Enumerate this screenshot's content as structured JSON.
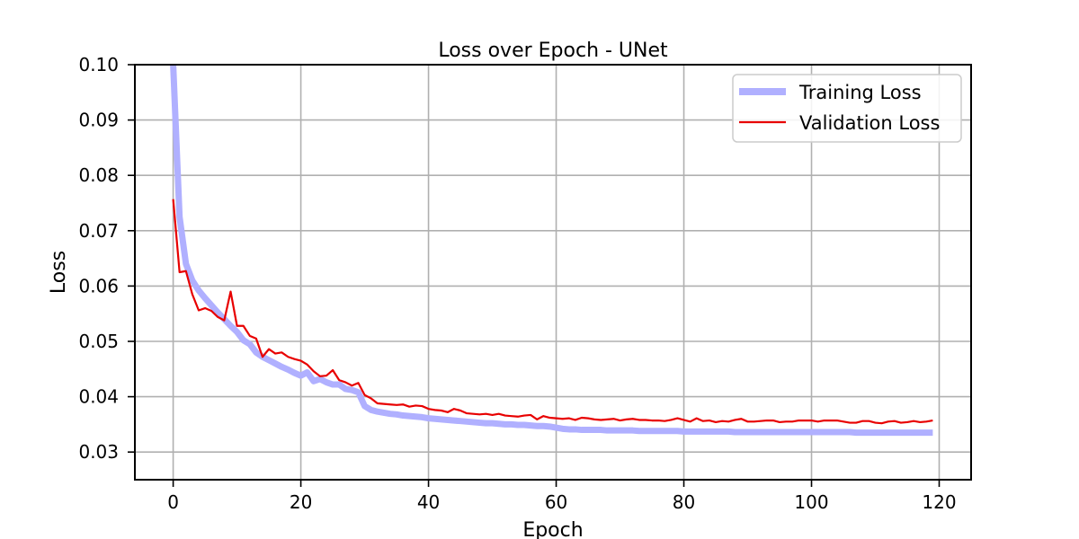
{
  "chart_data": {
    "type": "line",
    "title": "Loss over Epoch - UNet",
    "xlabel": "Epoch",
    "ylabel": "Loss",
    "xlim": [
      -6,
      125
    ],
    "ylim": [
      0.025,
      0.1
    ],
    "xticks": [
      "0",
      "20",
      "40",
      "60",
      "80",
      "100",
      "120"
    ],
    "yticks": [
      "0.03",
      "0.04",
      "0.05",
      "0.06",
      "0.07",
      "0.08",
      "0.09",
      "0.10"
    ],
    "grid": true,
    "legend_position": "top-right",
    "series": [
      {
        "name": "Training Loss",
        "color": "#b0b0ff",
        "x": [
          0,
          1,
          2,
          3,
          4,
          5,
          6,
          7,
          8,
          9,
          10,
          11,
          12,
          13,
          14,
          15,
          16,
          17,
          18,
          19,
          20,
          21,
          22,
          23,
          24,
          25,
          26,
          27,
          28,
          29,
          30,
          31,
          32,
          33,
          34,
          35,
          36,
          37,
          38,
          39,
          40,
          41,
          42,
          43,
          44,
          45,
          46,
          47,
          48,
          49,
          50,
          51,
          52,
          53,
          54,
          55,
          56,
          57,
          58,
          59,
          60,
          61,
          62,
          63,
          64,
          65,
          66,
          67,
          68,
          69,
          70,
          71,
          72,
          73,
          74,
          75,
          76,
          77,
          78,
          79,
          80,
          81,
          82,
          83,
          84,
          85,
          86,
          87,
          88,
          89,
          90,
          91,
          92,
          93,
          94,
          95,
          96,
          97,
          98,
          99,
          100,
          101,
          102,
          103,
          104,
          105,
          106,
          107,
          108,
          109,
          110,
          111,
          112,
          113,
          114,
          115,
          116,
          117,
          118,
          119
        ],
        "y": [
          0.1,
          0.0725,
          0.064,
          0.061,
          0.0592,
          0.0578,
          0.0565,
          0.0552,
          0.054,
          0.0528,
          0.0517,
          0.0502,
          0.0495,
          0.048,
          0.0472,
          0.0466,
          0.046,
          0.0454,
          0.0449,
          0.0443,
          0.0438,
          0.0444,
          0.0428,
          0.0432,
          0.0426,
          0.0422,
          0.0422,
          0.0414,
          0.0412,
          0.0408,
          0.0383,
          0.0376,
          0.0373,
          0.0371,
          0.0369,
          0.0368,
          0.0366,
          0.0365,
          0.0364,
          0.0363,
          0.0361,
          0.036,
          0.0359,
          0.0358,
          0.0357,
          0.0356,
          0.0355,
          0.0354,
          0.0353,
          0.0352,
          0.0352,
          0.0351,
          0.035,
          0.035,
          0.0349,
          0.0349,
          0.0348,
          0.0347,
          0.0347,
          0.0346,
          0.0344,
          0.0342,
          0.0341,
          0.0341,
          0.034,
          0.034,
          0.034,
          0.034,
          0.0339,
          0.0339,
          0.0339,
          0.0339,
          0.0339,
          0.0338,
          0.0338,
          0.0338,
          0.0338,
          0.0338,
          0.0338,
          0.0338,
          0.0337,
          0.0337,
          0.0337,
          0.0337,
          0.0337,
          0.0337,
          0.0337,
          0.0337,
          0.0336,
          0.0336,
          0.0336,
          0.0336,
          0.0336,
          0.0336,
          0.0336,
          0.0336,
          0.0336,
          0.0336,
          0.0336,
          0.0336,
          0.0336,
          0.0336,
          0.0336,
          0.0336,
          0.0336,
          0.0336,
          0.0336,
          0.0335,
          0.0335,
          0.0335,
          0.0335,
          0.0335,
          0.0335,
          0.0335,
          0.0335,
          0.0335,
          0.0335,
          0.0335,
          0.0335,
          0.0335
        ]
      },
      {
        "name": "Validation Loss",
        "color": "#e80000",
        "x": [
          0,
          1,
          2,
          3,
          4,
          5,
          6,
          7,
          8,
          9,
          10,
          11,
          12,
          13,
          14,
          15,
          16,
          17,
          18,
          19,
          20,
          21,
          22,
          23,
          24,
          25,
          26,
          27,
          28,
          29,
          30,
          31,
          32,
          33,
          34,
          35,
          36,
          37,
          38,
          39,
          40,
          41,
          42,
          43,
          44,
          45,
          46,
          47,
          48,
          49,
          50,
          51,
          52,
          53,
          54,
          55,
          56,
          57,
          58,
          59,
          60,
          61,
          62,
          63,
          64,
          65,
          66,
          67,
          68,
          69,
          70,
          71,
          72,
          73,
          74,
          75,
          76,
          77,
          78,
          79,
          80,
          81,
          82,
          83,
          84,
          85,
          86,
          87,
          88,
          89,
          90,
          91,
          92,
          93,
          94,
          95,
          96,
          97,
          98,
          99,
          100,
          101,
          102,
          103,
          104,
          105,
          106,
          107,
          108,
          109,
          110,
          111,
          112,
          113,
          114,
          115,
          116,
          117,
          118,
          119
        ],
        "y": [
          0.0757,
          0.0625,
          0.0627,
          0.0585,
          0.0556,
          0.056,
          0.0555,
          0.0544,
          0.0538,
          0.059,
          0.0528,
          0.0528,
          0.051,
          0.0505,
          0.0472,
          0.0486,
          0.0478,
          0.048,
          0.0472,
          0.0468,
          0.0465,
          0.0458,
          0.0446,
          0.0437,
          0.0438,
          0.0448,
          0.043,
          0.0426,
          0.042,
          0.0425,
          0.0403,
          0.0397,
          0.0388,
          0.0387,
          0.0386,
          0.0385,
          0.0386,
          0.0382,
          0.0384,
          0.0383,
          0.0378,
          0.0376,
          0.0375,
          0.0372,
          0.0378,
          0.0375,
          0.037,
          0.0369,
          0.0368,
          0.0369,
          0.0367,
          0.0369,
          0.0366,
          0.0365,
          0.0364,
          0.0366,
          0.0367,
          0.0359,
          0.0365,
          0.0362,
          0.0361,
          0.036,
          0.0361,
          0.0358,
          0.0362,
          0.0361,
          0.0359,
          0.0358,
          0.0359,
          0.036,
          0.0357,
          0.0359,
          0.036,
          0.0358,
          0.0358,
          0.0357,
          0.0357,
          0.0356,
          0.0358,
          0.0361,
          0.0358,
          0.0355,
          0.0361,
          0.0356,
          0.0357,
          0.0354,
          0.0356,
          0.0355,
          0.0358,
          0.036,
          0.0355,
          0.0355,
          0.0356,
          0.0357,
          0.0357,
          0.0354,
          0.0355,
          0.0355,
          0.0357,
          0.0357,
          0.0357,
          0.0355,
          0.0357,
          0.0357,
          0.0357,
          0.0355,
          0.0353,
          0.0353,
          0.0356,
          0.0356,
          0.0353,
          0.0352,
          0.0355,
          0.0356,
          0.0353,
          0.0354,
          0.0356,
          0.0354,
          0.0355,
          0.0357
        ]
      }
    ]
  }
}
